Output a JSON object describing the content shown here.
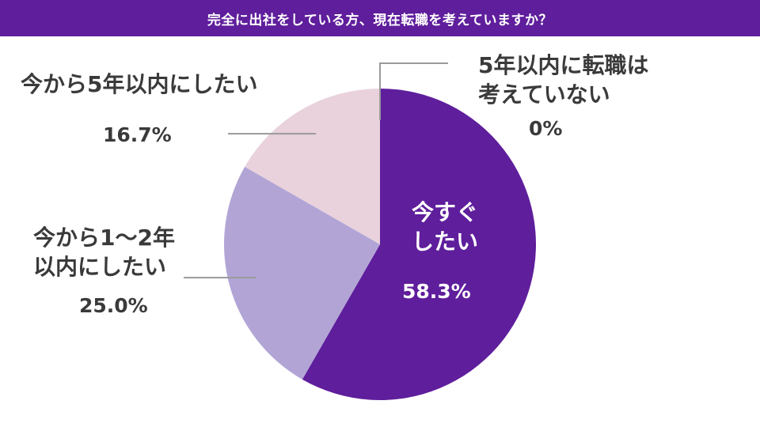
{
  "header": {
    "title": "完全に出社をしている方、現在転職を考えていますか？"
  },
  "colors": {
    "title_bar": "#5f1e9c"
  },
  "chart_data": {
    "type": "pie",
    "title": "完全に出社をしている方、現在転職を考えていますか？",
    "slices": [
      {
        "label_line1": "今すぐ",
        "label_line2": "したい",
        "label": "今すぐしたい",
        "value": 58.3,
        "value_text": "58.3%",
        "color": "#5f1e9c"
      },
      {
        "label_line1": "今から1～2年",
        "label_line2": "以内にしたい",
        "label": "今から1～2年以内にしたい",
        "value": 25.0,
        "value_text": "25.0%",
        "color": "#b2a5d6"
      },
      {
        "label_line1": "今から5年以内にしたい",
        "label_line2": "",
        "label": "今から5年以内にしたい",
        "value": 16.7,
        "value_text": "16.7%",
        "color": "#e9d2dc"
      },
      {
        "label_line1": "5年以内に転職は",
        "label_line2": "考えていない",
        "label": "5年以内に転職は考えていない",
        "value": 0,
        "value_text": "0%",
        "color": "#ffffff"
      }
    ]
  }
}
